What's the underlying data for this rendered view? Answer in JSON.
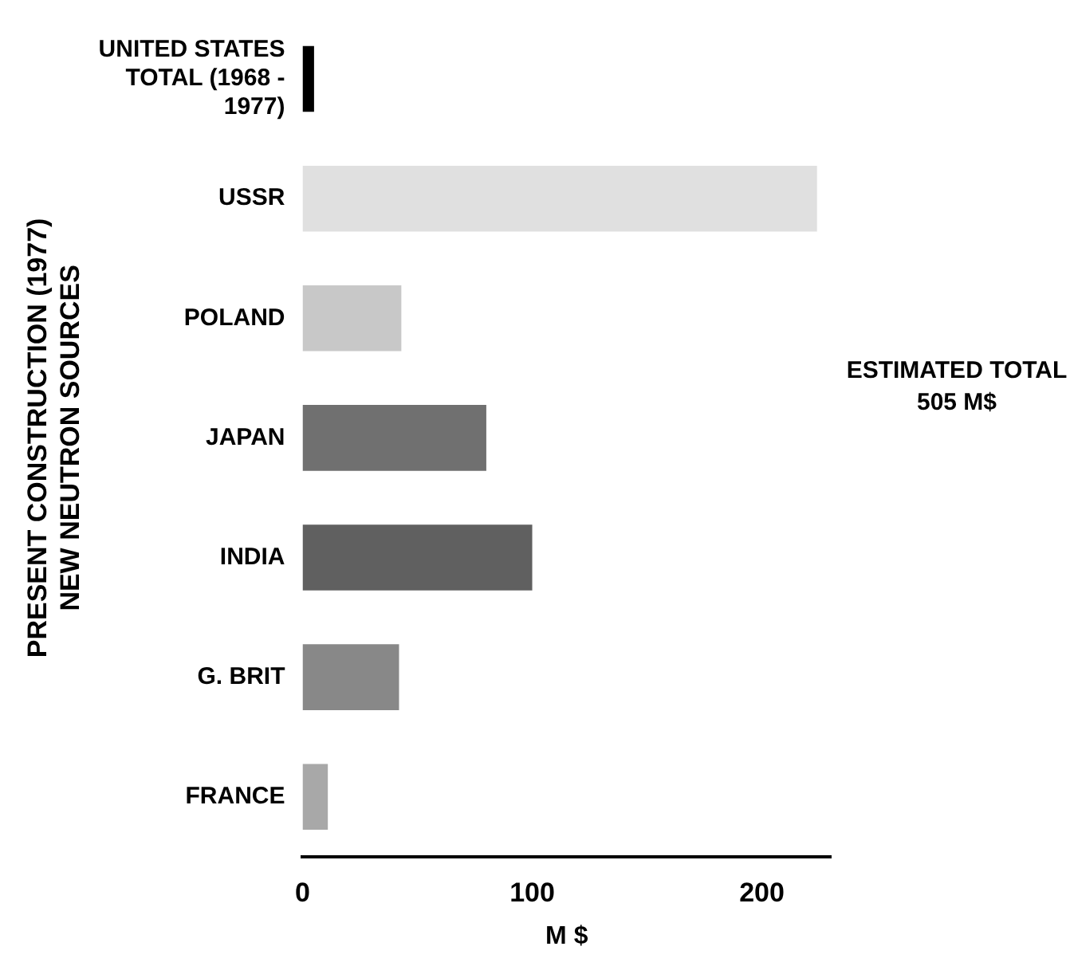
{
  "chart_data": {
    "type": "bar",
    "orientation": "horizontal",
    "xlabel": "M $",
    "ylabel": "PRESENT CONSTRUCTION (1977) NEW NEUTRON SOURCES",
    "categories": [
      "UNITED STATES TOTAL (1968 - 1977)",
      "USSR",
      "POLAND",
      "JAPAN",
      "INDIA",
      "G. BRIT",
      "FRANCE"
    ],
    "values": [
      5,
      224,
      43,
      80,
      100,
      42,
      11
    ],
    "colors": [
      "#000000",
      "#e0e0e0",
      "#c8c8c8",
      "#707070",
      "#606060",
      "#888888",
      "#a8a8a8"
    ],
    "xlim": [
      0,
      230
    ],
    "xticks": [
      0,
      100,
      200
    ],
    "grid": false,
    "legend": false,
    "annotations": [
      "ESTIMATED TOTAL 505 M$"
    ]
  }
}
